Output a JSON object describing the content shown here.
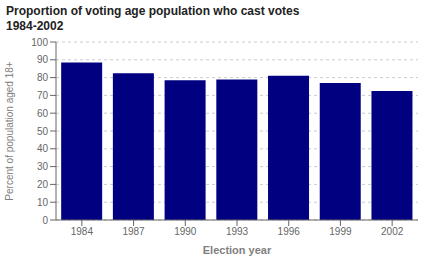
{
  "chart_data": {
    "type": "bar",
    "title": "Proportion of voting age population who cast votes",
    "subtitle": "1984-2002",
    "categories": [
      "1984",
      "1987",
      "1990",
      "1993",
      "1996",
      "1999",
      "2002"
    ],
    "values": [
      88.5,
      82.5,
      78.5,
      79.0,
      81.0,
      77.0,
      72.5
    ],
    "color": "#000080",
    "x_label": "Election year",
    "y_label": "Percent of population aged 18+",
    "ylim": [
      0,
      100
    ],
    "yticks": [
      0,
      10,
      20,
      30,
      40,
      50,
      60,
      70,
      80,
      90,
      100
    ],
    "grid": true
  }
}
